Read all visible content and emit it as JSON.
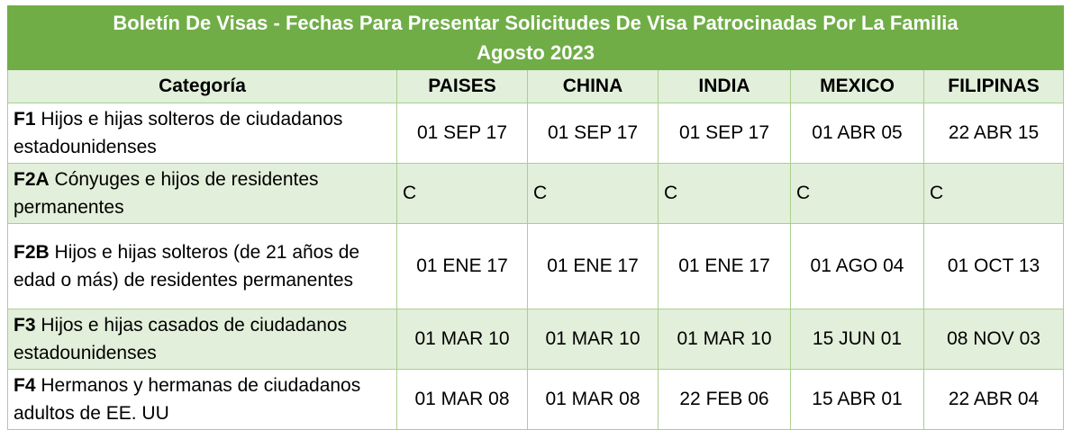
{
  "title_line1": "Boletín De Visas - Fechas Para Presentar Solicitudes De Visa Patrocinadas Por La Familia",
  "title_line2": "Agosto 2023",
  "headers": [
    "Categoría",
    "PAISES",
    "CHINA",
    "INDIA",
    "MEXICO",
    "FILIPINAS"
  ],
  "rows": [
    {
      "code": "F1",
      "desc": "Hijos e hijas solteros de ciudadanos estadounidenses",
      "values": [
        "01 SEP 17",
        "01 SEP 17",
        "01 SEP 17",
        "01 ABR 05",
        "22 ABR 15"
      ]
    },
    {
      "code": "F2A",
      "desc": "Cónyuges e hijos de residentes permanentes",
      "values": [
        "C",
        "C",
        "C",
        "C",
        "C"
      ]
    },
    {
      "code": "F2B",
      "desc": "Hijos e hijas solteros (de 21 años de edad o más) de residentes permanentes",
      "values": [
        "01 ENE 17",
        "01 ENE 17",
        "01 ENE 17",
        "01 AGO 04",
        "01 OCT 13"
      ]
    },
    {
      "code": "F3",
      "desc": "Hijos e hijas casados de ciudadanos estadounidenses",
      "values": [
        "01 MAR 10",
        "01 MAR 10",
        "01 MAR 10",
        "15 JUN 01",
        "08 NOV 03"
      ]
    },
    {
      "code": "F4",
      "desc": "Hermanos y hermanas de ciudadanos adultos de EE. UU",
      "values": [
        "01 MAR 08",
        "01 MAR 08",
        "22 FEB 06",
        "15 ABR 01",
        "22 ABR 04"
      ]
    }
  ],
  "colors": {
    "header_green": "#70ad47",
    "row_light": "#e2efda"
  }
}
